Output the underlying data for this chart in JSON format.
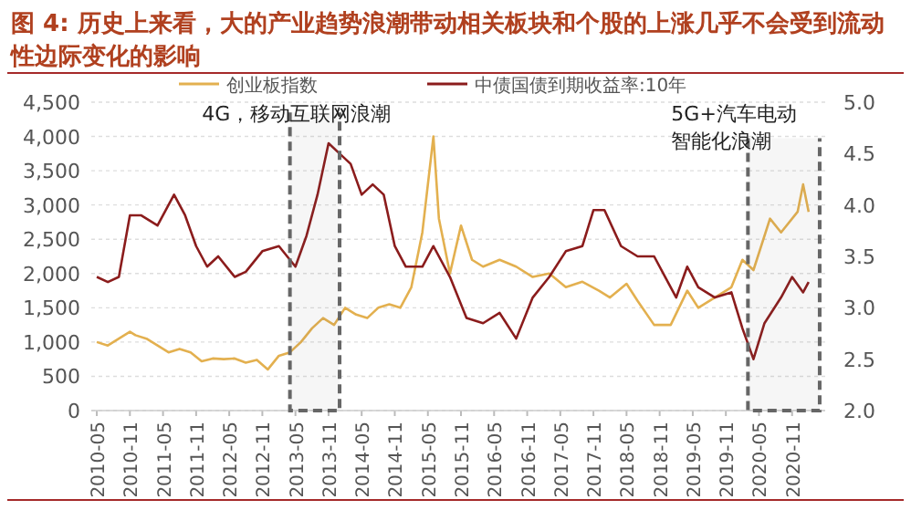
{
  "chart_data": {
    "type": "line",
    "title": "图 4: 历史上来看，大的产业趋势浪潮带动相关板块和个股的上涨几乎不会受到流动性边际变化的影响",
    "legend": "top",
    "grid": "y",
    "xlim": [
      "2010-04",
      "2021-05"
    ],
    "xticks": [
      "2010-05",
      "2010-11",
      "2011-05",
      "2011-11",
      "2012-05",
      "2012-11",
      "2013-05",
      "2013-11",
      "2014-05",
      "2014-11",
      "2015-05",
      "2015-11",
      "2016-05",
      "2016-11",
      "2017-05",
      "2017-11",
      "2018-05",
      "2018-11",
      "2019-05",
      "2019-11",
      "2020-05",
      "2020-11"
    ],
    "ylim": [
      0,
      4500
    ],
    "yticks": [
      0,
      500,
      {
        "value": 1000,
        "label": "1,000"
      },
      {
        "value": 1500,
        "label": "1,500"
      },
      {
        "value": 2000,
        "label": "2,000"
      },
      {
        "value": 2500,
        "label": "2,500"
      },
      {
        "value": 3000,
        "label": "3,000"
      },
      {
        "value": 3500,
        "label": "3,500"
      },
      {
        "value": 4000,
        "label": "4,000"
      },
      {
        "value": 4500,
        "label": "4,500"
      }
    ],
    "y2lim": [
      2,
      5
    ],
    "y2ticks": [
      {
        "value": 2,
        "label": "2.0"
      },
      {
        "value": 2.5,
        "label": "2.5"
      },
      {
        "value": 3,
        "label": "3.0"
      },
      {
        "value": 3.5,
        "label": "3.5"
      },
      {
        "value": 4,
        "label": "4.0"
      },
      {
        "value": 4.5,
        "label": "4.5"
      },
      {
        "value": 5,
        "label": "5.0"
      }
    ],
    "bands": [
      {
        "axis": "x",
        "from": "2013-04",
        "to": "2014-01",
        "label": "4G，移动互联网浪潮",
        "color": "#666666"
      },
      {
        "axis": "x",
        "from": "2020-03",
        "to": "2021-04",
        "label": "5G+汽车电动智能化浪潮",
        "color": "#666666"
      }
    ],
    "series": [
      {
        "name": "创业板指数",
        "color": "#e3b04f",
        "x": [
          "2010-05",
          "2010-07",
          "2010-09",
          "2010-11",
          "2010-12",
          "2011-02",
          "2011-04",
          "2011-06",
          "2011-08",
          "2011-10",
          "2011-12",
          "2012-02",
          "2012-04",
          "2012-06",
          "2012-08",
          "2012-10",
          "2012-12",
          "2013-02",
          "2013-04",
          "2013-06",
          "2013-08",
          "2013-10",
          "2013-12",
          "2014-02",
          "2014-04",
          "2014-06",
          "2014-08",
          "2014-10",
          "2014-12",
          "2015-02",
          "2015-04",
          "2015-06",
          "2015-07",
          "2015-09",
          "2015-11",
          "2016-01",
          "2016-03",
          "2016-06",
          "2016-09",
          "2016-12",
          "2017-03",
          "2017-06",
          "2017-09",
          "2017-12",
          "2018-02",
          "2018-05",
          "2018-07",
          "2018-10",
          "2019-01",
          "2019-04",
          "2019-06",
          "2019-09",
          "2019-12",
          "2020-02",
          "2020-04",
          "2020-07",
          "2020-09",
          "2020-12",
          "2021-01",
          "2021-02"
        ],
        "values": [
          1000,
          950,
          1050,
          1150,
          1100,
          1050,
          950,
          850,
          900,
          850,
          720,
          760,
          750,
          760,
          700,
          740,
          600,
          800,
          850,
          1000,
          1200,
          1350,
          1250,
          1500,
          1400,
          1350,
          1500,
          1550,
          1500,
          1800,
          2600,
          4000,
          2800,
          2000,
          2700,
          2200,
          2100,
          2200,
          2100,
          1950,
          2000,
          1800,
          1880,
          1750,
          1650,
          1850,
          1600,
          1250,
          1250,
          1750,
          1500,
          1650,
          1800,
          2200,
          2050,
          2800,
          2600,
          2900,
          3300,
          2900
        ]
      },
      {
        "name": "中债国债到期收益率:10年",
        "color": "#8b1c1c",
        "axis": "y2",
        "x": [
          "2010-05",
          "2010-07",
          "2010-09",
          "2010-11",
          "2011-01",
          "2011-04",
          "2011-07",
          "2011-09",
          "2011-11",
          "2012-01",
          "2012-03",
          "2012-06",
          "2012-08",
          "2012-11",
          "2013-02",
          "2013-05",
          "2013-07",
          "2013-09",
          "2013-11",
          "2014-01",
          "2014-03",
          "2014-05",
          "2014-07",
          "2014-09",
          "2014-11",
          "2015-01",
          "2015-04",
          "2015-06",
          "2015-09",
          "2015-12",
          "2016-03",
          "2016-06",
          "2016-09",
          "2016-12",
          "2017-03",
          "2017-06",
          "2017-09",
          "2017-11",
          "2018-01",
          "2018-04",
          "2018-07",
          "2018-10",
          "2018-12",
          "2019-02",
          "2019-04",
          "2019-06",
          "2019-09",
          "2019-12",
          "2020-02",
          "2020-04",
          "2020-06",
          "2020-09",
          "2020-11",
          "2021-01",
          "2021-02"
        ],
        "values": [
          3.3,
          3.25,
          3.3,
          3.9,
          3.9,
          3.8,
          4.1,
          3.9,
          3.6,
          3.4,
          3.5,
          3.3,
          3.35,
          3.55,
          3.6,
          3.4,
          3.7,
          4.1,
          4.6,
          4.5,
          4.4,
          4.1,
          4.2,
          4.1,
          3.6,
          3.4,
          3.4,
          3.6,
          3.3,
          2.9,
          2.85,
          2.95,
          2.7,
          3.1,
          3.3,
          3.55,
          3.6,
          3.95,
          3.95,
          3.6,
          3.5,
          3.5,
          3.3,
          3.1,
          3.4,
          3.2,
          3.1,
          3.15,
          2.8,
          2.5,
          2.85,
          3.1,
          3.3,
          3.15,
          3.25
        ]
      }
    ]
  }
}
